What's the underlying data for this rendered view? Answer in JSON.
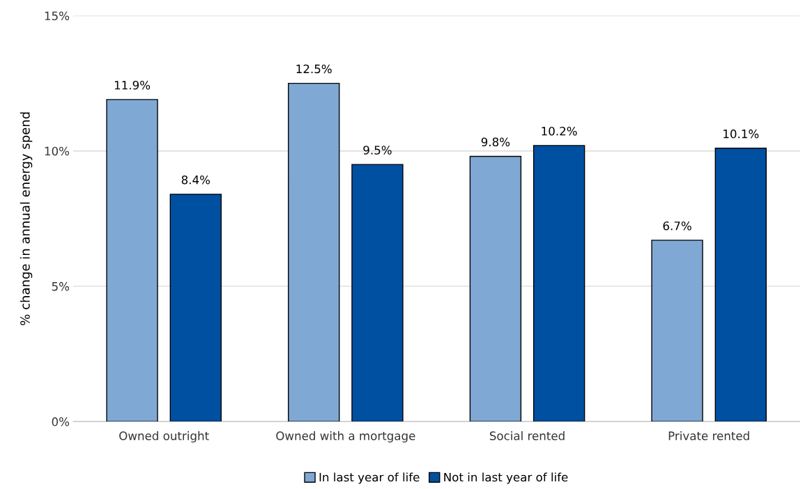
{
  "chart_data": {
    "type": "bar",
    "ylabel": "% change in annual energy spend",
    "categories": [
      "Owned outright",
      "Owned with a mortgage",
      "Social rented",
      "Private rented"
    ],
    "series": [
      {
        "name": "In last year of life",
        "color": "#7fa8d4",
        "values": [
          11.9,
          12.5,
          9.8,
          6.7
        ],
        "value_labels": [
          "11.9%",
          "12.5%",
          "9.8%",
          "6.7%"
        ]
      },
      {
        "name": "Not in last year of life",
        "color": "#0050a2",
        "values": [
          8.4,
          9.5,
          10.2,
          10.1
        ],
        "value_labels": [
          "8.4%",
          "9.5%",
          "10.2%",
          "10.1%"
        ]
      }
    ],
    "ylim": [
      0,
      15
    ],
    "yticks": [
      {
        "value": 0,
        "label": "0%"
      },
      {
        "value": 5,
        "label": "5%"
      },
      {
        "value": 10,
        "label": "10%"
      },
      {
        "value": 15,
        "label": "15%"
      }
    ],
    "grid": "y",
    "legend": "bottom"
  }
}
